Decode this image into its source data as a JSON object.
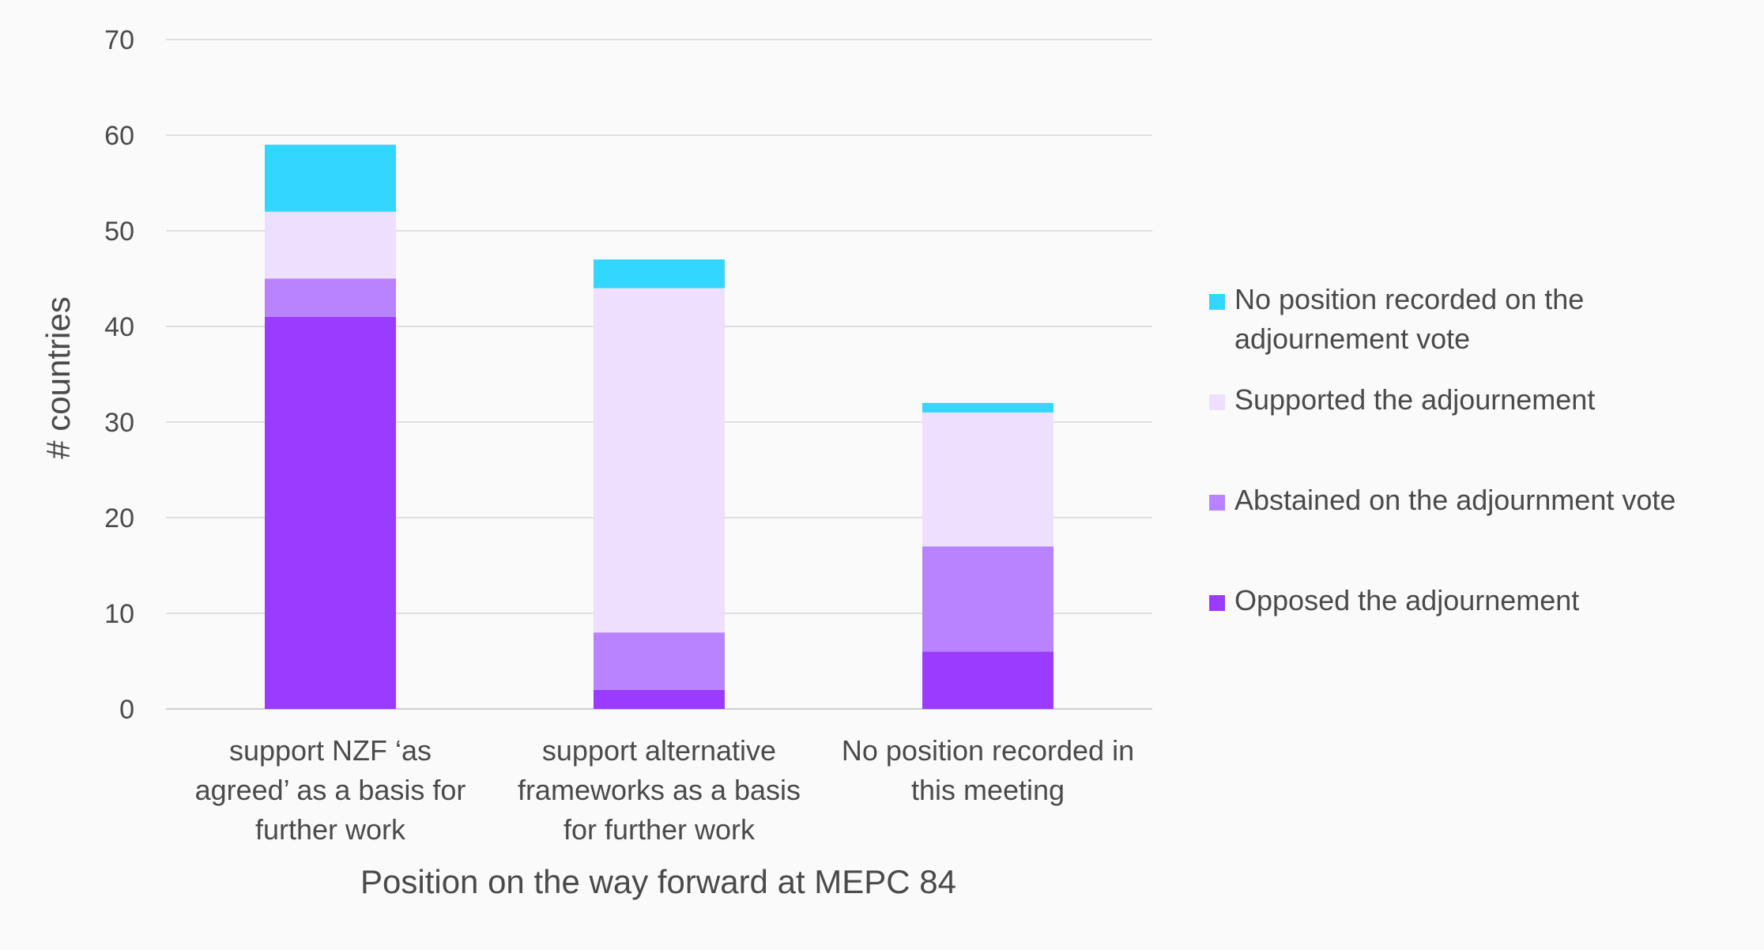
{
  "chart_data": {
    "type": "bar",
    "stacked": true,
    "categories": [
      [
        "support NZF ‘as",
        "agreed’ as a basis for",
        "further work"
      ],
      [
        "support alternative",
        "frameworks as a basis",
        "for further work"
      ],
      [
        "No position recorded in",
        "this meeting"
      ]
    ],
    "series": [
      {
        "name": "Opposed the adjournement",
        "color": "#9b3bff",
        "values": [
          41,
          2,
          6
        ]
      },
      {
        "name": "Abstained on the adjournment vote",
        "color": "#b983ff",
        "values": [
          4,
          6,
          11
        ]
      },
      {
        "name": "Supported the adjournement",
        "color": "#ecdfff",
        "values": [
          7,
          36,
          14
        ]
      },
      {
        "name": [
          "No position recorded on the",
          "adjournement vote"
        ],
        "color": "#33d6ff",
        "values": [
          7,
          3,
          1
        ]
      }
    ],
    "title": "",
    "xlabel": "Position on the way forward at MEPC 84",
    "ylabel": "# countries",
    "ylim": [
      0,
      70
    ],
    "yticks": [
      0,
      10,
      20,
      30,
      40,
      50,
      60,
      70
    ],
    "grid": true,
    "legend_position": "right"
  }
}
